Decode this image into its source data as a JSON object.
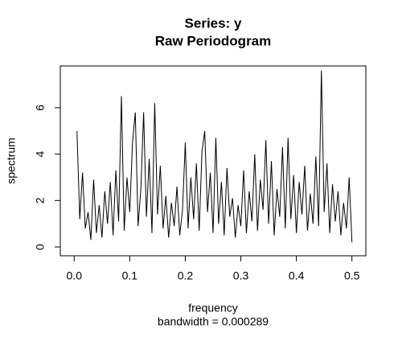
{
  "chart_data": {
    "type": "line",
    "title": "Series: y",
    "subtitle": "Raw Periodogram",
    "xlabel": "frequency",
    "sublabel": "bandwidth = 0.000289",
    "ylabel": "spectrum",
    "color": "#000000",
    "x": [
      0.005,
      0.01,
      0.015,
      0.02,
      0.025,
      0.03,
      0.035,
      0.04,
      0.045,
      0.05,
      0.055,
      0.06,
      0.065,
      0.07,
      0.075,
      0.08,
      0.085,
      0.09,
      0.095,
      0.1,
      0.105,
      0.11,
      0.115,
      0.12,
      0.125,
      0.13,
      0.135,
      0.14,
      0.145,
      0.15,
      0.155,
      0.16,
      0.165,
      0.17,
      0.175,
      0.18,
      0.185,
      0.19,
      0.195,
      0.2,
      0.205,
      0.21,
      0.215,
      0.22,
      0.225,
      0.23,
      0.235,
      0.24,
      0.245,
      0.25,
      0.255,
      0.26,
      0.265,
      0.27,
      0.275,
      0.28,
      0.285,
      0.29,
      0.295,
      0.3,
      0.305,
      0.31,
      0.315,
      0.32,
      0.325,
      0.33,
      0.335,
      0.34,
      0.345,
      0.35,
      0.355,
      0.36,
      0.365,
      0.37,
      0.375,
      0.38,
      0.385,
      0.39,
      0.395,
      0.4,
      0.405,
      0.41,
      0.415,
      0.42,
      0.425,
      0.43,
      0.435,
      0.44,
      0.445,
      0.45,
      0.455,
      0.46,
      0.465,
      0.47,
      0.475,
      0.48,
      0.485,
      0.49,
      0.495,
      0.5
    ],
    "values": [
      5.0,
      1.2,
      3.2,
      0.8,
      1.5,
      0.3,
      2.9,
      0.6,
      1.8,
      0.4,
      2.4,
      1.0,
      2.8,
      0.5,
      3.3,
      1.1,
      6.5,
      0.7,
      3.0,
      1.5,
      4.5,
      5.8,
      0.9,
      2.5,
      5.8,
      1.3,
      3.8,
      0.6,
      6.2,
      1.4,
      3.5,
      0.8,
      2.2,
      0.4,
      1.9,
      0.9,
      2.6,
      0.5,
      1.6,
      4.5,
      0.8,
      3.0,
      1.2,
      3.6,
      0.7,
      4.1,
      5.0,
      1.5,
      3.2,
      0.6,
      4.7,
      1.0,
      2.8,
      0.5,
      3.4,
      1.3,
      2.1,
      0.4,
      1.8,
      0.9,
      3.3,
      0.6,
      2.4,
      1.1,
      4.0,
      0.7,
      2.9,
      1.6,
      4.6,
      1.0,
      3.7,
      0.5,
      2.5,
      1.3,
      4.3,
      0.8,
      4.7,
      1.2,
      3.1,
      0.6,
      2.8,
      1.4,
      3.5,
      0.7,
      2.3,
      1.0,
      3.9,
      0.9,
      7.6,
      1.5,
      3.6,
      0.6,
      2.7,
      1.1,
      2.4,
      0.5,
      1.9,
      0.8,
      3.0,
      0.2
    ],
    "xlim": [
      -0.025,
      0.525
    ],
    "ylim": [
      -0.38,
      7.8
    ],
    "xticks": [
      {
        "value": 0,
        "label": "0.0"
      },
      0.1,
      0.2,
      0.3,
      0.4,
      {
        "value": 0.5,
        "label": "0.5"
      }
    ],
    "yticks": [
      0,
      2,
      4,
      6
    ]
  }
}
